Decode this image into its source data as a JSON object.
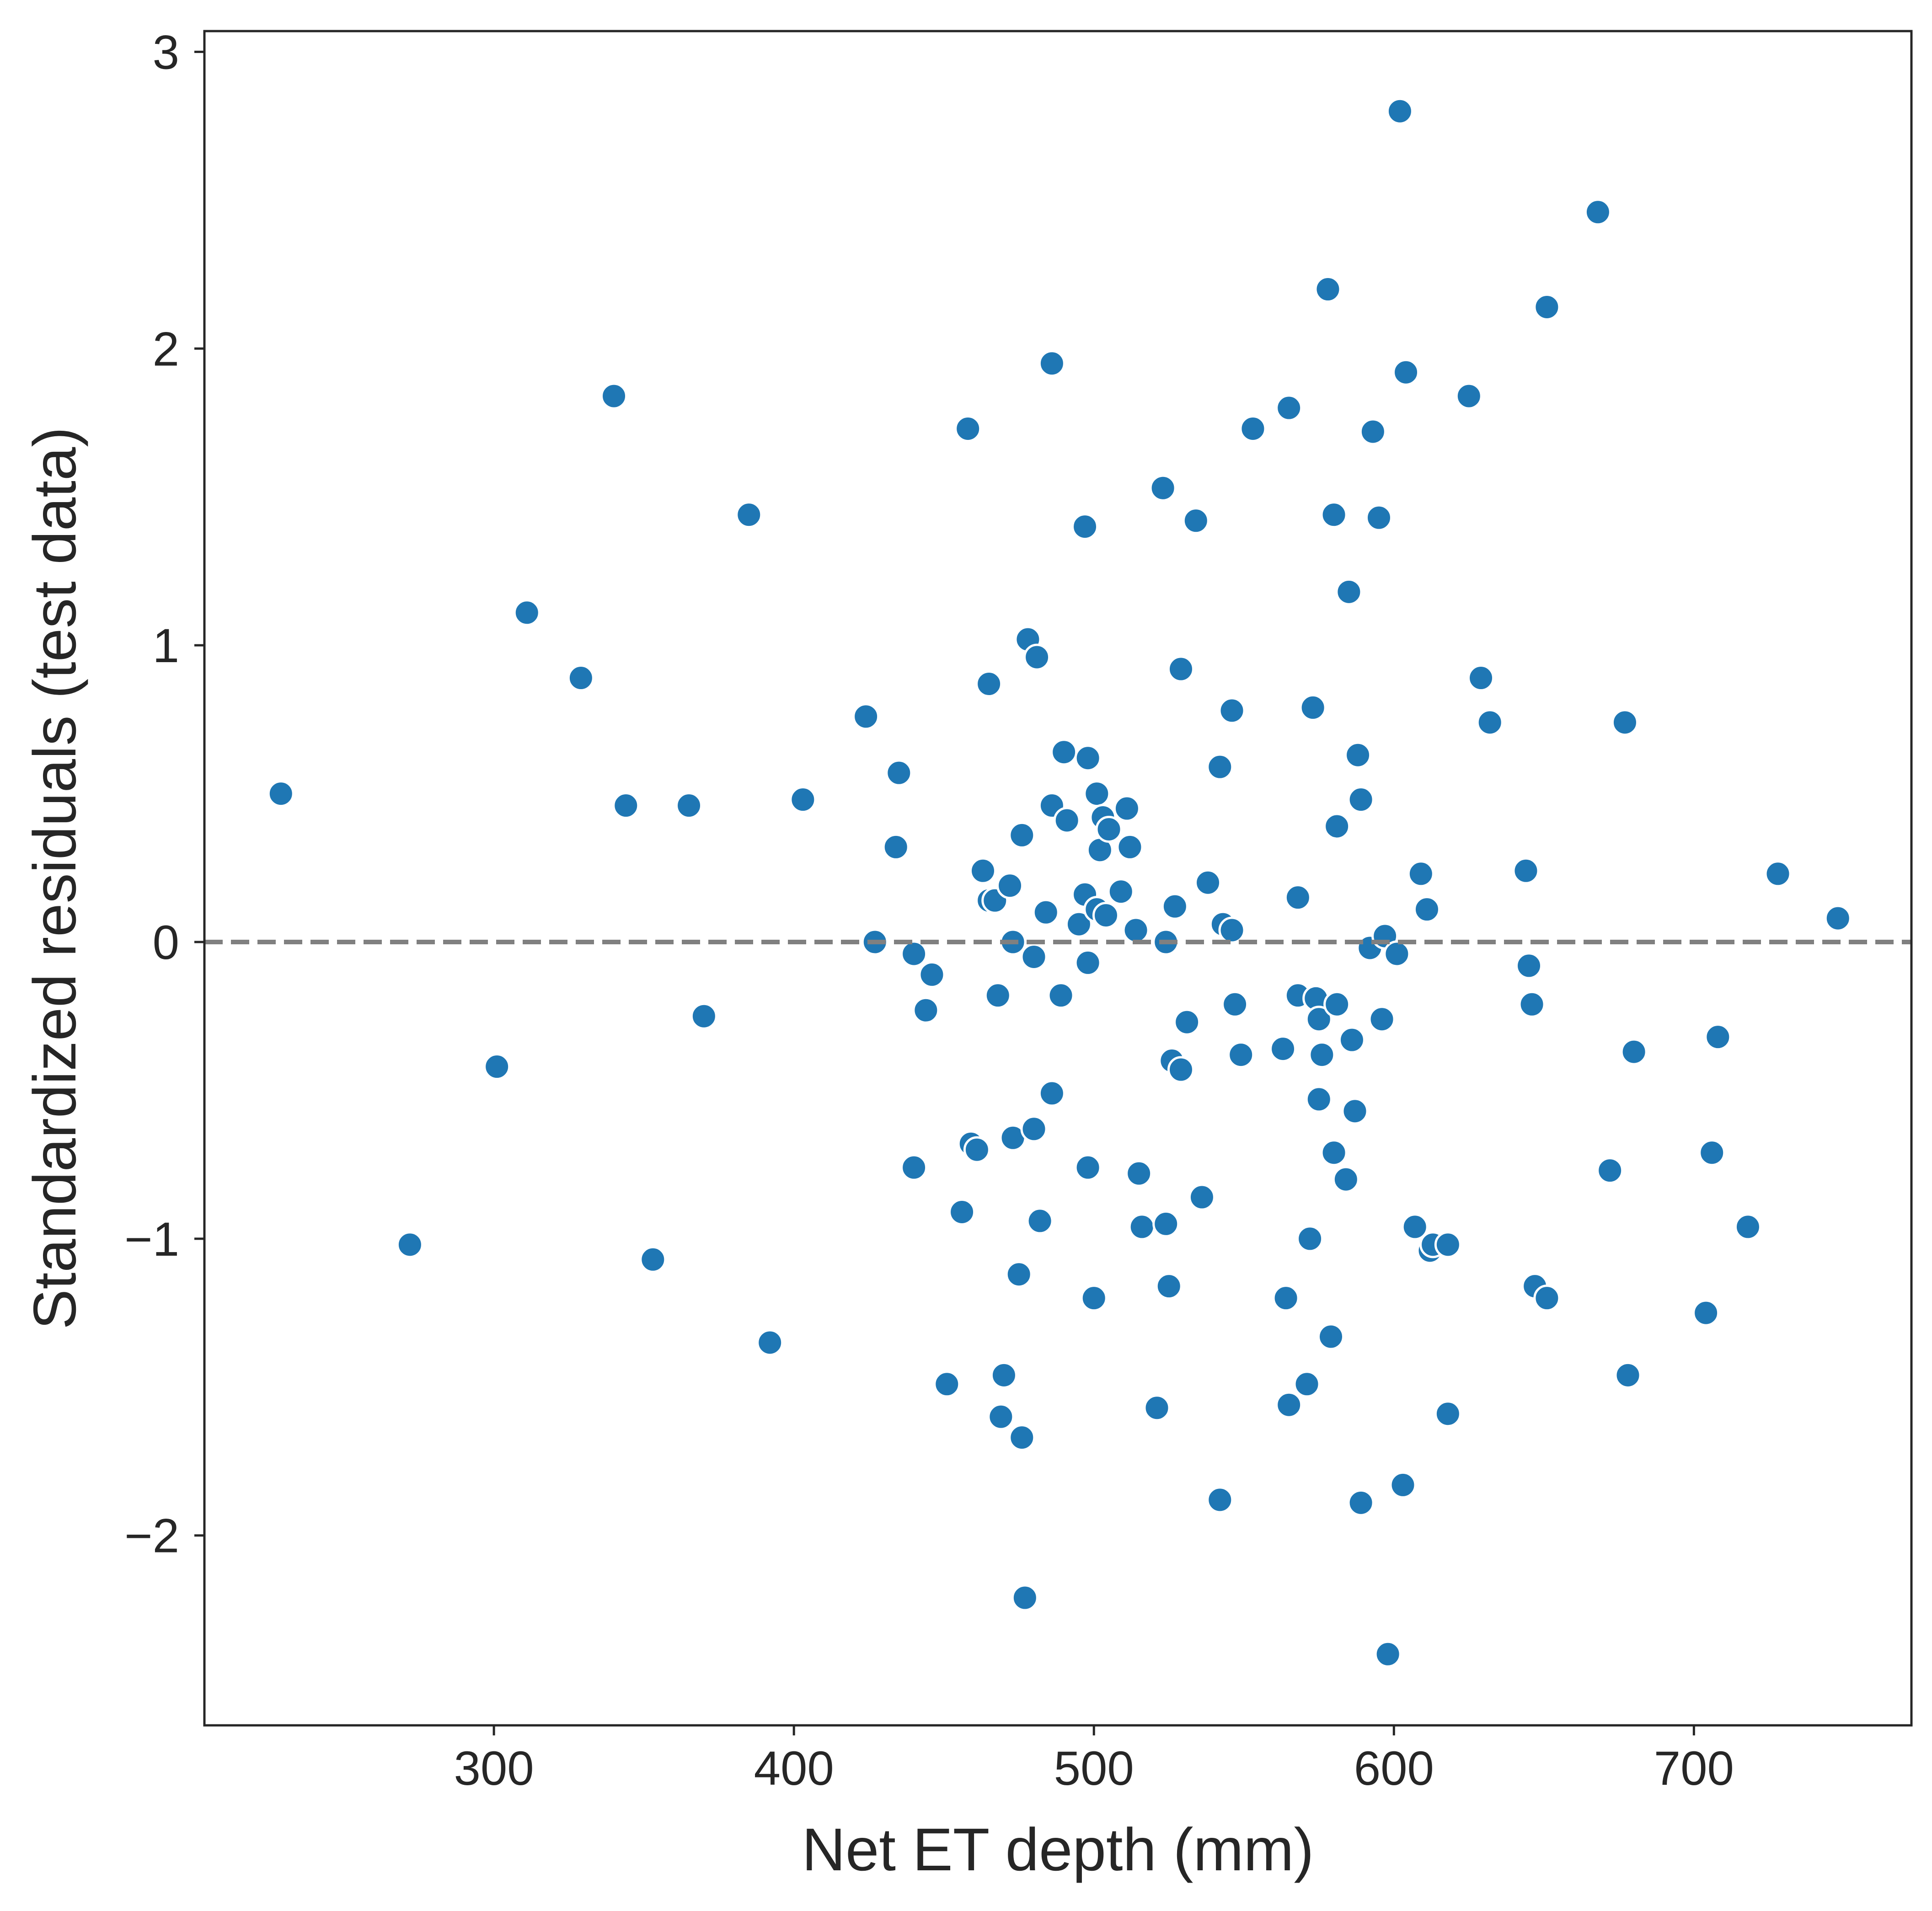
{
  "chart_data": {
    "type": "scatter",
    "title": "",
    "xlabel": "Net ET depth (mm)",
    "ylabel": "Standardized residuals (test data)",
    "xlim": [
      203.5,
      772.5
    ],
    "ylim": [
      -2.64,
      3.07
    ],
    "x_ticks": [
      {
        "value": 300,
        "label": "300"
      },
      {
        "value": 400,
        "label": "400"
      },
      {
        "value": 500,
        "label": "500"
      },
      {
        "value": 600,
        "label": "600"
      },
      {
        "value": 700,
        "label": "700"
      }
    ],
    "y_ticks": [
      {
        "value": -2,
        "label": "−2"
      },
      {
        "value": -1,
        "label": "−1"
      },
      {
        "value": 0,
        "label": "0"
      },
      {
        "value": 1,
        "label": "1"
      },
      {
        "value": 2,
        "label": "2"
      },
      {
        "value": 3,
        "label": "3"
      }
    ],
    "reference_line": {
      "y": 0,
      "style": "dashed",
      "color": "#808080"
    },
    "grid": false,
    "legend": "none",
    "point_color": "#1f77b4",
    "points": [
      {
        "x": 229,
        "y": 0.5
      },
      {
        "x": 272,
        "y": -1.02
      },
      {
        "x": 301,
        "y": -0.42
      },
      {
        "x": 311,
        "y": 1.11
      },
      {
        "x": 329,
        "y": 0.89
      },
      {
        "x": 340,
        "y": 1.84
      },
      {
        "x": 344,
        "y": 0.46
      },
      {
        "x": 353,
        "y": -1.07
      },
      {
        "x": 365,
        "y": 0.46
      },
      {
        "x": 370,
        "y": -0.25
      },
      {
        "x": 385,
        "y": 1.44
      },
      {
        "x": 392,
        "y": -1.35
      },
      {
        "x": 403,
        "y": 0.48
      },
      {
        "x": 424,
        "y": 0.76
      },
      {
        "x": 427,
        "y": 0.0
      },
      {
        "x": 434,
        "y": 0.32
      },
      {
        "x": 435,
        "y": 0.57
      },
      {
        "x": 440,
        "y": -0.76
      },
      {
        "x": 440,
        "y": -0.04
      },
      {
        "x": 444,
        "y": -0.23
      },
      {
        "x": 446,
        "y": -0.11
      },
      {
        "x": 451,
        "y": -1.49
      },
      {
        "x": 456,
        "y": -0.91
      },
      {
        "x": 458,
        "y": 1.73
      },
      {
        "x": 459,
        "y": -0.68
      },
      {
        "x": 461,
        "y": -0.7
      },
      {
        "x": 463,
        "y": 0.24
      },
      {
        "x": 465,
        "y": 0.14
      },
      {
        "x": 465,
        "y": 0.87
      },
      {
        "x": 467,
        "y": 0.14
      },
      {
        "x": 468,
        "y": -0.18
      },
      {
        "x": 469,
        "y": -1.6
      },
      {
        "x": 470,
        "y": -1.46
      },
      {
        "x": 472,
        "y": 0.19
      },
      {
        "x": 473,
        "y": -0.66
      },
      {
        "x": 473,
        "y": 0.0
      },
      {
        "x": 475,
        "y": -1.12
      },
      {
        "x": 476,
        "y": -1.67
      },
      {
        "x": 476,
        "y": 0.36
      },
      {
        "x": 477,
        "y": -2.21
      },
      {
        "x": 478,
        "y": 1.02
      },
      {
        "x": 480,
        "y": -0.63
      },
      {
        "x": 480,
        "y": -0.05
      },
      {
        "x": 481,
        "y": 0.96
      },
      {
        "x": 482,
        "y": -0.94
      },
      {
        "x": 484,
        "y": 0.1
      },
      {
        "x": 486,
        "y": -0.51
      },
      {
        "x": 486,
        "y": 1.95
      },
      {
        "x": 486,
        "y": 0.46
      },
      {
        "x": 489,
        "y": -0.18
      },
      {
        "x": 490,
        "y": 0.64
      },
      {
        "x": 491,
        "y": 0.41
      },
      {
        "x": 495,
        "y": 0.06
      },
      {
        "x": 497,
        "y": 1.4
      },
      {
        "x": 497,
        "y": 0.16
      },
      {
        "x": 498,
        "y": -0.76
      },
      {
        "x": 498,
        "y": -0.07
      },
      {
        "x": 498,
        "y": 0.62
      },
      {
        "x": 500,
        "y": -1.2
      },
      {
        "x": 501,
        "y": 0.5
      },
      {
        "x": 501,
        "y": 0.11
      },
      {
        "x": 502,
        "y": 0.31
      },
      {
        "x": 503,
        "y": 0.42
      },
      {
        "x": 504,
        "y": 0.09
      },
      {
        "x": 505,
        "y": 0.38
      },
      {
        "x": 509,
        "y": 0.17
      },
      {
        "x": 511,
        "y": 0.45
      },
      {
        "x": 512,
        "y": 0.32
      },
      {
        "x": 514,
        "y": 0.04
      },
      {
        "x": 515,
        "y": -0.78
      },
      {
        "x": 516,
        "y": -0.96
      },
      {
        "x": 521,
        "y": -1.57
      },
      {
        "x": 523,
        "y": 1.53
      },
      {
        "x": 524,
        "y": -0.95
      },
      {
        "x": 524,
        "y": 0.0
      },
      {
        "x": 525,
        "y": -1.16
      },
      {
        "x": 526,
        "y": -0.4
      },
      {
        "x": 527,
        "y": 0.12
      },
      {
        "x": 529,
        "y": -0.43
      },
      {
        "x": 529,
        "y": 0.92
      },
      {
        "x": 531,
        "y": -0.27
      },
      {
        "x": 534,
        "y": 1.42
      },
      {
        "x": 536,
        "y": -0.86
      },
      {
        "x": 538,
        "y": 0.2
      },
      {
        "x": 542,
        "y": -1.88
      },
      {
        "x": 542,
        "y": 0.59
      },
      {
        "x": 543,
        "y": 0.06
      },
      {
        "x": 546,
        "y": 0.78
      },
      {
        "x": 546,
        "y": 0.04
      },
      {
        "x": 547,
        "y": -0.21
      },
      {
        "x": 549,
        "y": -0.38
      },
      {
        "x": 553,
        "y": 1.73
      },
      {
        "x": 563,
        "y": -0.36
      },
      {
        "x": 564,
        "y": -1.2
      },
      {
        "x": 565,
        "y": -1.56
      },
      {
        "x": 565,
        "y": 1.8
      },
      {
        "x": 568,
        "y": 0.15
      },
      {
        "x": 568,
        "y": -0.18
      },
      {
        "x": 571,
        "y": -1.49
      },
      {
        "x": 572,
        "y": -1.0
      },
      {
        "x": 573,
        "y": 0.79
      },
      {
        "x": 574,
        "y": -0.19
      },
      {
        "x": 575,
        "y": -0.53
      },
      {
        "x": 575,
        "y": -0.26
      },
      {
        "x": 576,
        "y": -0.38
      },
      {
        "x": 578,
        "y": 2.2
      },
      {
        "x": 579,
        "y": -1.33
      },
      {
        "x": 580,
        "y": 1.44
      },
      {
        "x": 580,
        "y": -0.71
      },
      {
        "x": 581,
        "y": -0.21
      },
      {
        "x": 581,
        "y": 0.39
      },
      {
        "x": 584,
        "y": -0.8
      },
      {
        "x": 585,
        "y": 1.18
      },
      {
        "x": 586,
        "y": -0.33
      },
      {
        "x": 587,
        "y": -0.57
      },
      {
        "x": 588,
        "y": 0.63
      },
      {
        "x": 589,
        "y": -1.89
      },
      {
        "x": 589,
        "y": 0.48
      },
      {
        "x": 592,
        "y": -0.02
      },
      {
        "x": 593,
        "y": 1.72
      },
      {
        "x": 595,
        "y": 1.43
      },
      {
        "x": 596,
        "y": -0.26
      },
      {
        "x": 597,
        "y": 0.02
      },
      {
        "x": 598,
        "y": -2.4
      },
      {
        "x": 601,
        "y": -0.04
      },
      {
        "x": 602,
        "y": 2.8
      },
      {
        "x": 603,
        "y": -1.83
      },
      {
        "x": 604,
        "y": 1.92
      },
      {
        "x": 607,
        "y": -0.96
      },
      {
        "x": 609,
        "y": 0.23
      },
      {
        "x": 611,
        "y": 0.11
      },
      {
        "x": 612,
        "y": -1.04
      },
      {
        "x": 613,
        "y": -1.02
      },
      {
        "x": 618,
        "y": -1.02
      },
      {
        "x": 618,
        "y": -1.59
      },
      {
        "x": 625,
        "y": 1.84
      },
      {
        "x": 629,
        "y": 0.89
      },
      {
        "x": 632,
        "y": 0.74
      },
      {
        "x": 644,
        "y": 0.24
      },
      {
        "x": 645,
        "y": -0.08
      },
      {
        "x": 646,
        "y": -0.21
      },
      {
        "x": 647,
        "y": -1.16
      },
      {
        "x": 651,
        "y": 2.14
      },
      {
        "x": 651,
        "y": -1.2
      },
      {
        "x": 668,
        "y": 2.46
      },
      {
        "x": 672,
        "y": -0.77
      },
      {
        "x": 677,
        "y": 0.74
      },
      {
        "x": 678,
        "y": -1.46
      },
      {
        "x": 680,
        "y": -0.37
      },
      {
        "x": 704,
        "y": -1.25
      },
      {
        "x": 706,
        "y": -0.71
      },
      {
        "x": 708,
        "y": -0.32
      },
      {
        "x": 718,
        "y": -0.96
      },
      {
        "x": 728,
        "y": 0.23
      },
      {
        "x": 748,
        "y": 0.08
      }
    ]
  }
}
